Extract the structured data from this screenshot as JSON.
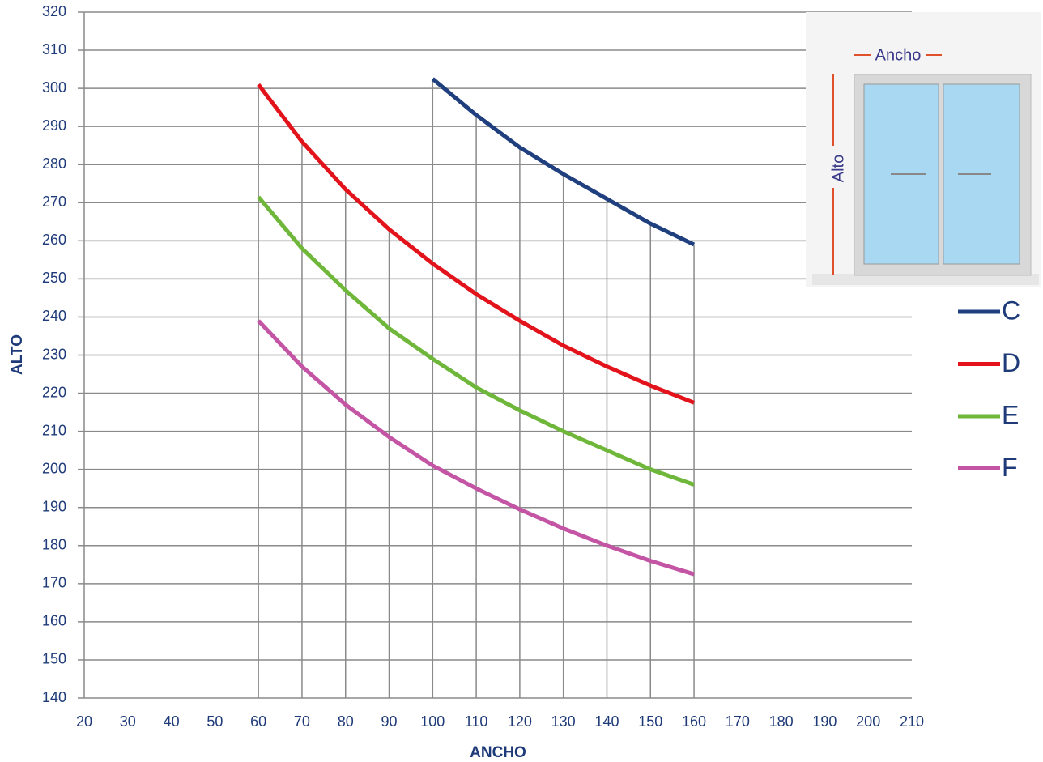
{
  "chart_data": {
    "type": "line",
    "x_label": "ANCHO",
    "y_label": "ALTO",
    "x": [
      60,
      70,
      80,
      90,
      100,
      110,
      120,
      130,
      140,
      150,
      160
    ],
    "series": [
      {
        "name": "C",
        "color": "#1f3f7f",
        "values": [
          null,
          null,
          null,
          null,
          302.5,
          293,
          284.5,
          277.5,
          271,
          264.5,
          259
        ]
      },
      {
        "name": "D",
        "color": "#e3131b",
        "values": [
          301,
          286,
          273.5,
          263,
          254,
          246,
          239,
          232.5,
          227,
          222,
          217.5
        ]
      },
      {
        "name": "E",
        "color": "#6fb73a",
        "values": [
          271.5,
          258,
          247,
          237,
          229,
          221.5,
          215.5,
          210,
          205,
          200,
          196
        ]
      },
      {
        "name": "F",
        "color": "#c355a4",
        "values": [
          239,
          227,
          217,
          208.5,
          201,
          195,
          189.5,
          184.5,
          180,
          176,
          172.5
        ]
      }
    ],
    "xlim": [
      20,
      210
    ],
    "xticks": [
      20,
      30,
      40,
      50,
      60,
      70,
      80,
      90,
      100,
      110,
      120,
      130,
      140,
      150,
      160,
      170,
      180,
      190,
      200,
      210
    ],
    "ylim": [
      140,
      320
    ],
    "yticks": [
      140,
      150,
      160,
      170,
      180,
      190,
      200,
      210,
      220,
      230,
      240,
      250,
      260,
      270,
      280,
      290,
      300,
      310,
      320
    ],
    "grid": true,
    "legend": "right",
    "inset": {
      "width_label": "Ancho",
      "height_label": "Alto"
    }
  }
}
